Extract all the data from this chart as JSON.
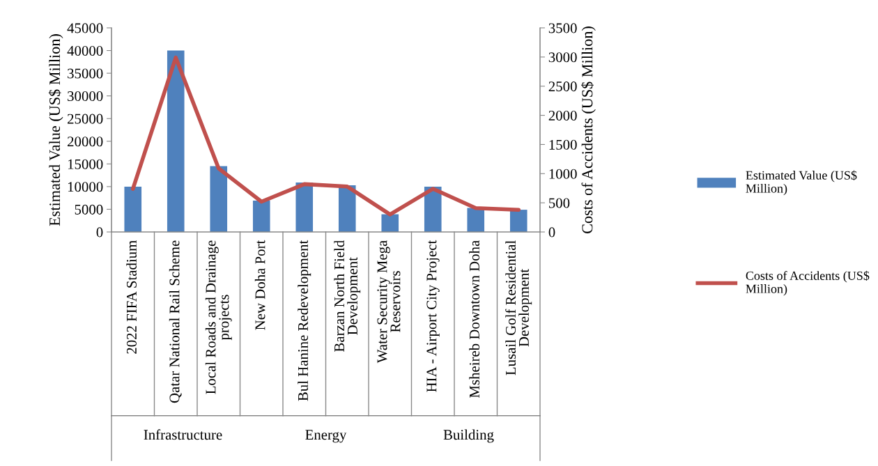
{
  "chart_data": {
    "type": "bar",
    "categories": [
      "2022 FIFA Stadium",
      "Qatar National Rail Scheme",
      "Local Roads and Drainage projects",
      "New Doha Port",
      "Bul Hanine Redevelopment",
      "Barzan North Field Development",
      "Water Security Mega Reservoirs",
      "HIA - Airport City Project",
      "Msheireb Downtown Doha",
      "Lusail Golf Residential Development"
    ],
    "series": [
      {
        "name": "Estimated Value (US$ Million)",
        "color": "#4f81bd",
        "values": [
          10000,
          40000,
          14500,
          6900,
          10900,
          10300,
          3900,
          10000,
          5300,
          4900
        ]
      },
      {
        "name": "Costs of Accidents (US$ Million)",
        "type": "line",
        "axis": "y2",
        "color": "#c0504d",
        "values": [
          740,
          2990,
          1090,
          520,
          820,
          780,
          300,
          740,
          410,
          380
        ]
      }
    ],
    "ylabel": "Estimated Value (US$ Million)",
    "y2label": "Costs of Accidents (US$ Million)",
    "ylim": [
      0,
      45000
    ],
    "yticks": [
      0,
      5000,
      10000,
      15000,
      20000,
      25000,
      30000,
      35000,
      40000,
      45000
    ],
    "y2lim": [
      0,
      3500
    ],
    "y2ticks": [
      0,
      500,
      1000,
      1500,
      2000,
      2500,
      3000,
      3500
    ],
    "annotations": [
      "Infrastructure",
      "Energy",
      "Building"
    ],
    "legend": "right",
    "grid": false,
    "marker": "none",
    "line_style": "solid"
  }
}
